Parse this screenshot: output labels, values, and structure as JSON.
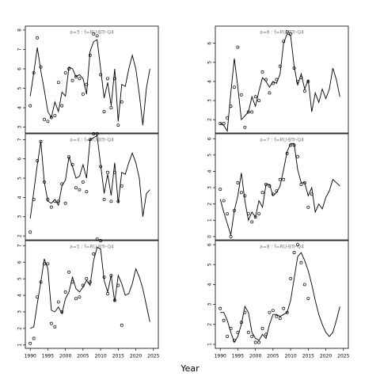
{
  "xlabel": "Year",
  "chart_data": [
    {
      "type": "line",
      "title": "a=3  :  f=RU-BTr-Q4",
      "x": [
        1990,
        1991,
        1992,
        1993,
        1994,
        1995,
        1996,
        1997,
        1998,
        1999,
        2000,
        2001,
        2002,
        2003,
        2004,
        2005,
        2006,
        2007,
        2008,
        2009,
        2010,
        2011,
        2012,
        2013,
        2014,
        2015,
        2016,
        2017,
        2018,
        2019,
        2020,
        2021,
        2022,
        2023,
        2024
      ],
      "xlim": [
        1988.6,
        2026.4
      ],
      "ylim": [
        2.7,
        8.2
      ],
      "yticks": [
        3,
        4,
        5,
        6,
        7,
        8
      ],
      "series": [
        {
          "style": "line",
          "color": "#000000",
          "values": [
            4.6,
            5.8,
            7.1,
            5.9,
            4.9,
            3.8,
            3.5,
            4.3,
            3.8,
            4.8,
            4.6,
            6.1,
            6.0,
            5.6,
            5.7,
            5.5,
            4.7,
            6.9,
            7.4,
            7.5,
            6.0,
            4.5,
            5.3,
            4.1,
            6.0,
            3.3,
            5.2,
            5.1,
            6.0,
            6.7,
            6.0,
            4.7,
            3.1,
            5.0,
            6.0
          ]
        },
        {
          "style": "points",
          "color": "#000000",
          "values": [
            4.1,
            5.8,
            7.6,
            6.1,
            3.4,
            3.3,
            3.5,
            3.6,
            5.3,
            4.1,
            5.8,
            6.0,
            5.4,
            5.6,
            5.5,
            4.7,
            5.2,
            6.7,
            7.8,
            7.7,
            5.7,
            3.8,
            5.5,
            4.0,
            5.5,
            3.1,
            4.3,
            null,
            null,
            null,
            null,
            null,
            null,
            null,
            null
          ]
        }
      ]
    },
    {
      "type": "line",
      "title": "a=6  :  f=RU-BTr-Q4",
      "x": [
        1990,
        1991,
        1992,
        1993,
        1994,
        1995,
        1996,
        1997,
        1998,
        1999,
        2000,
        2001,
        2002,
        2003,
        2004,
        2005,
        2006,
        2007,
        2008,
        2009,
        2010,
        2011,
        2012,
        2013,
        2014,
        2015,
        2016,
        2017,
        2018,
        2019,
        2020,
        2021,
        2022,
        2023,
        2024
      ],
      "xlim": [
        1988.6,
        2026.4
      ],
      "ylim": [
        1.3,
        6.9
      ],
      "yticks": [
        2,
        3,
        4,
        5,
        6
      ],
      "series": [
        {
          "style": "line",
          "color": "#000000",
          "values": [
            1.8,
            1.7,
            1.4,
            3.4,
            5.2,
            3.7,
            2.0,
            2.2,
            2.4,
            3.2,
            2.7,
            3.5,
            4.2,
            4.0,
            3.7,
            4.0,
            3.9,
            4.4,
            6.0,
            6.5,
            6.4,
            4.8,
            3.8,
            4.4,
            3.6,
            4.1,
            2.4,
            3.4,
            2.9,
            3.6,
            3.1,
            3.6,
            4.7,
            4.1,
            3.2
          ]
        },
        {
          "style": "points",
          "color": "#000000",
          "values": [
            1.8,
            1.8,
            2.1,
            2.7,
            3.7,
            5.8,
            3.3,
            1.6,
            2.4,
            2.4,
            3.2,
            3.0,
            4.5,
            4.1,
            3.4,
            3.9,
            4.1,
            4.8,
            6.1,
            6.6,
            6.5,
            4.7,
            4.0,
            4.2,
            3.5,
            4.0,
            null,
            null,
            null,
            null,
            null,
            null,
            null,
            null,
            null
          ]
        }
      ]
    },
    {
      "type": "line",
      "title": "a=4  :  f=RU-BTr-Q4",
      "x": [
        1990,
        1991,
        1992,
        1993,
        1994,
        1995,
        1996,
        1997,
        1998,
        1999,
        2000,
        2001,
        2002,
        2003,
        2004,
        2005,
        2006,
        2007,
        2008,
        2009,
        2010,
        2011,
        2012,
        2013,
        2014,
        2015,
        2016,
        2017,
        2018,
        2019,
        2020,
        2021,
        2022,
        2023,
        2024
      ],
      "xlim": [
        1988.6,
        2026.4
      ],
      "ylim": [
        1.8,
        7.3
      ],
      "yticks": [
        2,
        3,
        4,
        5,
        6,
        7
      ],
      "series": [
        {
          "style": "line",
          "color": "#000000",
          "values": [
            2.9,
            4.3,
            5.7,
            6.9,
            4.8,
            3.8,
            3.7,
            3.9,
            3.6,
            4.6,
            4.9,
            6.1,
            5.6,
            5.0,
            5.1,
            5.7,
            5.0,
            7.0,
            7.1,
            7.2,
            5.7,
            4.2,
            5.2,
            4.1,
            5.8,
            3.7,
            5.3,
            5.2,
            5.8,
            6.3,
            5.8,
            5.0,
            3.0,
            4.2,
            4.4
          ]
        },
        {
          "style": "points",
          "color": "#000000",
          "values": [
            2.2,
            3.9,
            5.9,
            6.9,
            4.8,
            3.9,
            3.5,
            3.8,
            3.8,
            4.7,
            3.7,
            6.1,
            5.7,
            4.5,
            4.4,
            4.8,
            4.3,
            7.0,
            7.3,
            7.3,
            5.6,
            3.9,
            5.3,
            3.8,
            5.3,
            3.8,
            4.6,
            null,
            null,
            null,
            null,
            null,
            null,
            null,
            null
          ]
        }
      ]
    },
    {
      "type": "line",
      "title": "a=7  :  f=RU-BTr-Q4",
      "x": [
        1990,
        1991,
        1992,
        1993,
        1994,
        1995,
        1996,
        1997,
        1998,
        1999,
        2000,
        2001,
        2002,
        2003,
        2004,
        2005,
        2006,
        2007,
        2008,
        2009,
        2010,
        2011,
        2012,
        2013,
        2014,
        2015,
        2016,
        2017,
        2018,
        2019,
        2020,
        2021,
        2022,
        2023,
        2024
      ],
      "xlim": [
        1988.6,
        2026.4
      ],
      "ylim": [
        -0.2,
        6.3
      ],
      "yticks": [
        0,
        1,
        2,
        3,
        4,
        5,
        6
      ],
      "series": [
        {
          "style": "line",
          "color": "#000000",
          "values": [
            2.3,
            1.5,
            0.8,
            0.1,
            1.6,
            2.5,
            3.9,
            2.2,
            1.0,
            1.5,
            1.2,
            2.2,
            1.8,
            3.2,
            3.2,
            2.5,
            2.7,
            3.1,
            4.1,
            5.2,
            5.7,
            5.7,
            4.1,
            3.3,
            3.3,
            2.5,
            3.0,
            1.5,
            2.0,
            1.7,
            2.4,
            2.8,
            3.5,
            3.3,
            3.1
          ]
        },
        {
          "style": "points",
          "color": "#000000",
          "values": [
            2.9,
            2.2,
            1.4,
            0.0,
            1.6,
            3.3,
            2.7,
            2.5,
            1.4,
            0.9,
            1.2,
            1.4,
            2.7,
            3.2,
            3.1,
            2.6,
            2.8,
            3.5,
            3.5,
            5.1,
            5.6,
            5.6,
            4.9,
            3.2,
            3.3,
            1.8,
            2.6,
            null,
            null,
            null,
            null,
            null,
            null,
            null,
            null
          ]
        }
      ]
    },
    {
      "type": "line",
      "title": "a=5  :  f=RU-BTr-Q4",
      "x": [
        1990,
        1991,
        1992,
        1993,
        1994,
        1995,
        1996,
        1997,
        1998,
        1999,
        2000,
        2001,
        2002,
        2003,
        2004,
        2005,
        2006,
        2007,
        2008,
        2009,
        2010,
        2011,
        2012,
        2013,
        2014,
        2015,
        2016,
        2017,
        2018,
        2019,
        2020,
        2021,
        2022,
        2023,
        2024
      ],
      "xlim": [
        1988.6,
        2026.4
      ],
      "ylim": [
        0.8,
        7.3
      ],
      "yticks": [
        1,
        2,
        3,
        4,
        5,
        6,
        7
      ],
      "xticks": [
        1990,
        1995,
        2000,
        2005,
        2010,
        2015,
        2020,
        2025
      ],
      "series": [
        {
          "style": "line",
          "color": "#000000",
          "values": [
            2.0,
            2.1,
            3.5,
            4.8,
            6.2,
            5.6,
            3.1,
            3.0,
            3.3,
            2.9,
            3.8,
            4.2,
            5.1,
            4.4,
            4.2,
            4.5,
            4.9,
            4.6,
            6.1,
            6.9,
            6.8,
            4.9,
            4.2,
            5.2,
            3.6,
            5.2,
            4.7,
            4.0,
            4.1,
            4.7,
            5.6,
            5.1,
            4.4,
            3.4,
            2.4
          ]
        },
        {
          "style": "points",
          "color": "#000000",
          "values": [
            1.1,
            1.4,
            3.9,
            4.8,
            5.9,
            5.9,
            2.3,
            2.1,
            3.6,
            3.0,
            4.2,
            5.4,
            4.8,
            3.8,
            3.9,
            4.6,
            5.0,
            4.8,
            6.5,
            7.4,
            7.3,
            5.1,
            4.1,
            5.2,
            3.7,
            4.6,
            2.2,
            null,
            null,
            null,
            null,
            null,
            null,
            null,
            null
          ]
        }
      ]
    },
    {
      "type": "line",
      "title": "a=8  :  f=RU-BTr-Q4",
      "x": [
        1990,
        1991,
        1992,
        1993,
        1994,
        1995,
        1996,
        1997,
        1998,
        1999,
        2000,
        2001,
        2002,
        2003,
        2004,
        2005,
        2006,
        2007,
        2008,
        2009,
        2010,
        2011,
        2012,
        2013,
        2014,
        2015,
        2016,
        2017,
        2018,
        2019,
        2020,
        2021,
        2022,
        2023,
        2024
      ],
      "xlim": [
        1988.6,
        2026.4
      ],
      "ylim": [
        0.8,
        6.2
      ],
      "yticks": [
        1,
        2,
        3,
        4,
        5,
        6
      ],
      "xticks": [
        1990,
        1995,
        2000,
        2005,
        2010,
        2015,
        2020,
        2025
      ],
      "series": [
        {
          "style": "line",
          "color": "#000000",
          "values": [
            2.6,
            2.6,
            2.2,
            1.6,
            1.1,
            1.4,
            2.0,
            2.9,
            2.6,
            1.6,
            1.3,
            1.2,
            1.5,
            1.3,
            2.0,
            2.5,
            2.5,
            2.4,
            2.5,
            2.6,
            3.2,
            4.3,
            5.4,
            5.6,
            5.2,
            4.7,
            4.0,
            3.2,
            2.5,
            2.0,
            1.6,
            1.4,
            1.6,
            2.2,
            2.9
          ]
        },
        {
          "style": "points",
          "color": "#000000",
          "values": [
            2.8,
            2.2,
            1.4,
            1.8,
            1.2,
            1.6,
            2.1,
            2.6,
            1.6,
            1.4,
            1.1,
            1.1,
            1.8,
            1.5,
            2.6,
            2.7,
            2.4,
            2.3,
            2.8,
            2.6,
            4.3,
            5.6,
            6.0,
            5.1,
            4.0,
            3.3,
            null,
            null,
            null,
            null,
            null,
            null,
            null,
            null,
            null
          ]
        }
      ]
    }
  ]
}
